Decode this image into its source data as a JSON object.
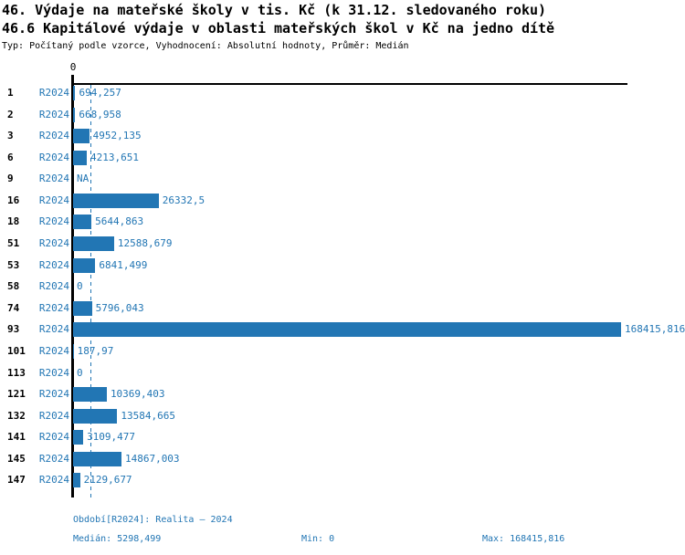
{
  "chart_data": {
    "type": "bar",
    "orientation": "horizontal",
    "title": "46. Výdaje na mateřské školy v tis. Kč (k 31.12. sledovaného roku)",
    "subtitle": "46.6 Kapitálové výdaje v oblasti mateřských škol v Kč na jedno dítě",
    "meta": "Typ: Počítaný podle vzorce, Vyhodnocení: Absolutní hodnoty, Průměr: Medián",
    "series_label": "R2024",
    "categories": [
      "1",
      "2",
      "3",
      "6",
      "9",
      "16",
      "18",
      "51",
      "53",
      "58",
      "74",
      "93",
      "101",
      "113",
      "121",
      "132",
      "141",
      "145",
      "147"
    ],
    "values": [
      694.257,
      668.958,
      4952.135,
      4213.651,
      null,
      26332.5,
      5644.863,
      12588.679,
      6841.499,
      0,
      5796.043,
      168415.816,
      187.97,
      0,
      10369.403,
      13584.665,
      3109.477,
      14867.003,
      2129.677
    ],
    "value_labels": [
      "694,257",
      "668,958",
      "4952,135",
      "4213,651",
      "NA",
      "26332,5",
      "5644,863",
      "12588,679",
      "6841,499",
      "0",
      "5796,043",
      "168415,816",
      "187,97",
      "0",
      "10369,403",
      "13584,665",
      "3109,477",
      "14867,003",
      "2129,677"
    ],
    "x_zero_label": "0",
    "xlim": [
      0,
      168415.816
    ],
    "median_value": 5298.499,
    "grid": false,
    "legend": "none",
    "bar_color": "#2276b4",
    "axis_color": "#000000"
  },
  "footer": {
    "period": "Období[R2024]: Realita – 2024",
    "median": "Medián: 5298,499",
    "min": "Min: 0",
    "max": "Max: 168415,816"
  }
}
